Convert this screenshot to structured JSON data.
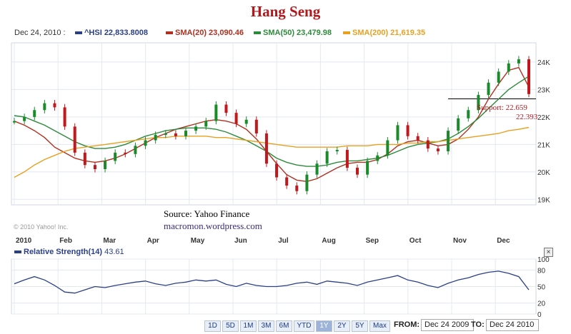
{
  "title": "Hang Seng",
  "legend": {
    "date": "Dec 24, 2010 :",
    "hsi": "^HSI 22,833.8008",
    "sma20": "SMA(20) 23,090.46",
    "sma50": "SMA(50) 23,479.98",
    "sma200": "SMA(200) 21,619.35"
  },
  "colors": {
    "price": "#2a3f86",
    "up": "#1a8a2a",
    "down": "#c0181d",
    "sma20": "#b03020",
    "sma50": "#2d8a3a",
    "sma200": "#e8a020",
    "rsi": "#2a3f86"
  },
  "source": "Source:   Yahoo Finance",
  "website": "macromon.wordpress.com",
  "copyright": "© 2010 Yahoo! Inc.",
  "support": {
    "label": "Support:  22.659",
    "value2": "22.393"
  },
  "rs_legend": {
    "name": "Relative Strength(14)",
    "value": "43.61"
  },
  "close_icon": "×",
  "range_buttons": [
    "1D",
    "5D",
    "1M",
    "3M",
    "6M",
    "YTD",
    "1Y",
    "2Y",
    "5Y",
    "Max"
  ],
  "selected_range": "1Y",
  "from_label": "FROM:",
  "from_date": "Dec 24 2009",
  "to_label": "TO:",
  "to_date": "Dec 24 2010",
  "chart_data": [
    {
      "type": "line",
      "title": "Hang Seng",
      "x_ticks": [
        "2010",
        "Feb",
        "Mar",
        "Apr",
        "May",
        "Jun",
        "Jul",
        "Aug",
        "Sep",
        "Oct",
        "Nov",
        "Dec"
      ],
      "y_ticks": [
        "19K",
        "20K",
        "21K",
        "22K",
        "23K",
        "24K"
      ],
      "ylim": [
        18800,
        24700
      ],
      "x": [
        0,
        1,
        2,
        3,
        4,
        5,
        6,
        7,
        8,
        9,
        10,
        11,
        12,
        13,
        14,
        15,
        16,
        17,
        18,
        19,
        20,
        21,
        22,
        23,
        24,
        25,
        26,
        27,
        28,
        29,
        30,
        31,
        32,
        33,
        34,
        35,
        36,
        37,
        38,
        39,
        40,
        41,
        42,
        43,
        44,
        45,
        46,
        47,
        48,
        49,
        50,
        51
      ],
      "series": [
        {
          "name": "^HSI",
          "values": [
            21850,
            22000,
            22250,
            22500,
            22350,
            21650,
            20700,
            20250,
            20100,
            20400,
            20700,
            20650,
            20950,
            21150,
            21350,
            21400,
            21300,
            21500,
            21650,
            21850,
            22450,
            22150,
            21750,
            21900,
            21400,
            20300,
            19800,
            19500,
            19300,
            19900,
            20300,
            20750,
            20800,
            20150,
            19900,
            20400,
            20600,
            21150,
            21700,
            21300,
            21150,
            20850,
            20750,
            21500,
            21950,
            22250,
            22800,
            23250,
            23650,
            23950,
            24100,
            22834
          ]
        },
        {
          "name": "SMA(20)",
          "values": [
            21850,
            21700,
            21500,
            21250,
            20900,
            20700,
            20500,
            20400,
            20350,
            20400,
            20500,
            20650,
            20850,
            21050,
            21250,
            21400,
            21550,
            21650,
            21750,
            21850,
            21900,
            21850,
            21750,
            21550,
            21200,
            20750,
            20300,
            19900,
            19700,
            19650,
            19750,
            19950,
            20150,
            20300,
            20350,
            20350,
            20450,
            20650,
            20950,
            21100,
            21150,
            21050,
            20950,
            21000,
            21200,
            21550,
            22000,
            22650,
            23200,
            23700,
            23800,
            23090
          ]
        },
        {
          "name": "SMA(50)",
          "values": [
            22050,
            22000,
            21850,
            21700,
            21500,
            21300,
            21100,
            20950,
            20850,
            20850,
            20900,
            21000,
            21150,
            21300,
            21400,
            21500,
            21550,
            21600,
            21600,
            21600,
            21550,
            21450,
            21300,
            21150,
            20950,
            20750,
            20500,
            20350,
            20250,
            20200,
            20200,
            20250,
            20350,
            20400,
            20400,
            20450,
            20500,
            20600,
            20750,
            20900,
            21000,
            21050,
            21100,
            21200,
            21400,
            21650,
            21950,
            22300,
            22650,
            23000,
            23250,
            23480
          ]
        },
        {
          "name": "SMA(200)",
          "values": [
            19800,
            20000,
            20250,
            20450,
            20600,
            20750,
            20850,
            20900,
            20950,
            21000,
            21050,
            21100,
            21150,
            21200,
            21250,
            21250,
            21300,
            21300,
            21300,
            21300,
            21250,
            21250,
            21200,
            21150,
            21100,
            21050,
            21000,
            20950,
            20900,
            20900,
            20900,
            20900,
            20900,
            20950,
            20950,
            20950,
            21000,
            21000,
            21000,
            21050,
            21050,
            21100,
            21100,
            21150,
            21200,
            21250,
            21300,
            21350,
            21400,
            21500,
            21550,
            21619
          ]
        }
      ],
      "support_line": 22659
    },
    {
      "type": "line",
      "title": "Relative Strength(14)",
      "y_ticks": [
        0,
        20,
        50,
        80,
        100
      ],
      "ylim": [
        0,
        100
      ],
      "x": [
        0,
        1,
        2,
        3,
        4,
        5,
        6,
        7,
        8,
        9,
        10,
        11,
        12,
        13,
        14,
        15,
        16,
        17,
        18,
        19,
        20,
        21,
        22,
        23,
        24,
        25,
        26,
        27,
        28,
        29,
        30,
        31,
        32,
        33,
        34,
        35,
        36,
        37,
        38,
        39,
        40,
        41,
        42,
        43,
        44,
        45,
        46,
        47,
        48,
        49,
        50,
        51
      ],
      "series": [
        {
          "name": "Relative Strength(14)",
          "values": [
            55,
            62,
            68,
            62,
            52,
            40,
            38,
            44,
            50,
            48,
            52,
            55,
            58,
            60,
            55,
            52,
            56,
            58,
            62,
            60,
            62,
            54,
            50,
            56,
            52,
            50,
            50,
            52,
            56,
            58,
            54,
            60,
            58,
            56,
            52,
            58,
            62,
            66,
            70,
            62,
            58,
            52,
            48,
            56,
            62,
            66,
            72,
            76,
            78,
            74,
            68,
            44
          ]
        }
      ]
    }
  ]
}
